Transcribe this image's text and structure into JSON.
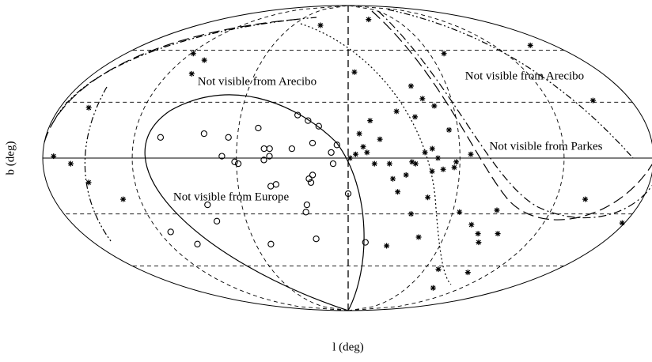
{
  "chart_data": {
    "type": "scatter",
    "projection": "hammer",
    "xlabel": "l (deg)",
    "ylabel": "b (deg)",
    "xlim": [
      -180,
      180
    ],
    "ylim": [
      -90,
      90
    ],
    "xticks": [
      -120,
      -60,
      0,
      60,
      120
    ],
    "yticks": [
      -60,
      -30,
      0,
      30,
      60
    ],
    "grid": true,
    "annotations": [
      "Not visible from Arecibo",
      "Not visible from Arecibo",
      "Not visible from Parkes",
      "Not visible from Europe"
    ],
    "series": [
      {
        "marker": "star",
        "color": "#000000",
        "x": [
          30,
          -26,
          -155,
          -71,
          118,
          103,
          103,
          -4,
          -38,
          158,
          -151,
          -43,
          -49,
          -27,
          -37,
          -12,
          -55,
          -6,
          -17,
          -8,
          -1,
          -4,
          -10,
          -14,
          -22,
          -34,
          -41,
          -45,
          -48,
          -36,
          -57,
          -58,
          -66,
          172,
          160,
          150,
          131,
          -24,
          -31,
          -45,
          -51,
          -27,
          -36,
          -64,
          -44,
          -86,
          -139,
          -94,
          -81,
          -85,
          -44,
          -25,
          -74,
          -178,
          -99,
          -88,
          -71
        ],
        "values": [
          76,
          80,
          63,
          58,
          58,
          54,
          46,
          47,
          39,
          27,
          31,
          32,
          28,
          25,
          22,
          20,
          15,
          13,
          10,
          6,
          0,
          2,
          3,
          -3,
          -3,
          -2,
          3,
          5,
          0,
          -3,
          -5,
          -2,
          2,
          1,
          -3,
          -13,
          -22,
          -11,
          -9,
          -7,
          -6,
          -18,
          -30,
          -29,
          -21,
          -28,
          -22,
          -41,
          -41,
          -46,
          -43,
          -48,
          -36,
          -35,
          -64,
          -74,
          -62
        ]
      },
      {
        "marker": "circle",
        "color": "#000000",
        "x": [
          104,
          79,
          65,
          49,
          28,
          22,
          16,
          6,
          30,
          19,
          45,
          42,
          68,
          61,
          59,
          45,
          42,
          42,
          39,
          21,
          19,
          20,
          23,
          24,
          0,
          80,
          78,
          112,
          100,
          50,
          20,
          -11,
          8,
          9
        ],
        "values": [
          11,
          13,
          11,
          16,
          23,
          20,
          17,
          7,
          5,
          8,
          5,
          5,
          1,
          -2,
          -3,
          -1,
          1,
          -15,
          -14,
          -11,
          -9,
          -13,
          -25,
          -29,
          -19,
          -25,
          -34,
          -40,
          -47,
          -47,
          -44,
          -46,
          -3,
          3
        ]
      }
    ]
  }
}
